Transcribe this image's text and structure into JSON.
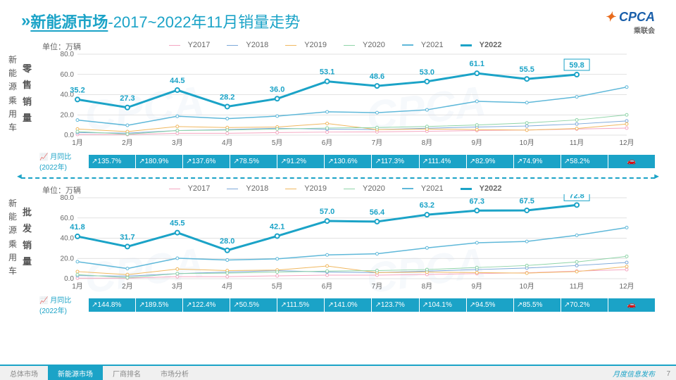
{
  "header": {
    "title_main": "新能源市场",
    "title_sub": "-2017~2022年11月销量走势",
    "logo_text": "CPCA",
    "logo_sub": "乘联会"
  },
  "legend": {
    "items": [
      {
        "label": "Y2017",
        "color": "#f5a6c1",
        "width": 1
      },
      {
        "label": "Y2018",
        "color": "#7da8d9",
        "width": 1
      },
      {
        "label": "Y2019",
        "color": "#f0b860",
        "width": 1
      },
      {
        "label": "Y2020",
        "color": "#8fd4a8",
        "width": 1
      },
      {
        "label": "Y2021",
        "color": "#5fb8d9",
        "width": 1.5
      },
      {
        "label": "Y2022",
        "color": "#1ba3c7",
        "width": 3
      }
    ]
  },
  "months": [
    "1月",
    "2月",
    "3月",
    "4月",
    "5月",
    "6月",
    "7月",
    "8月",
    "9月",
    "10月",
    "11月",
    "12月"
  ],
  "chart1": {
    "unit": "单位：万辆",
    "side_label": "新能源乘用车",
    "metric_label": "零售销量",
    "ylim": [
      0,
      80
    ],
    "ytick_step": 20,
    "series": {
      "Y2017": [
        0.7,
        0.5,
        1.8,
        1.8,
        2.5,
        3.0,
        3.2,
        3.8,
        4.5,
        5.0,
        6.0,
        7.0
      ],
      "Y2018": [
        2.5,
        2.0,
        4.5,
        5.5,
        6.8,
        5.8,
        5.5,
        6.8,
        8.0,
        9.0,
        11.0,
        14.0
      ],
      "Y2019": [
        6.0,
        3.5,
        8.5,
        7.5,
        8.0,
        11.5,
        5.5,
        6.0,
        5.5,
        5.0,
        6.5,
        11.0
      ],
      "Y2020": [
        3.5,
        1.0,
        4.5,
        5.0,
        6.0,
        7.0,
        7.5,
        8.5,
        10.0,
        12.0,
        15.0,
        20.0
      ],
      "Y2021": [
        14.9,
        9.7,
        18.7,
        16.3,
        18.8,
        23.0,
        22.2,
        25.0,
        33.4,
        32.1,
        37.8,
        47.5
      ],
      "Y2022": [
        35.2,
        27.3,
        44.5,
        28.2,
        36.0,
        53.1,
        48.6,
        53.0,
        61.1,
        55.5,
        59.8
      ]
    },
    "labels2022": [
      "35.2",
      "27.3",
      "44.5",
      "28.2",
      "36.0",
      "53.1",
      "48.6",
      "53.0",
      "61.1",
      "55.5",
      "59.8"
    ],
    "highlight_last": true,
    "yoy_label": "月同比(2022年)",
    "yoy": [
      "135.7%",
      "180.9%",
      "137.6%",
      "78.5%",
      "91.2%",
      "130.6%",
      "117.3%",
      "111.4%",
      "82.9%",
      "74.9%",
      "58.2%",
      ""
    ]
  },
  "chart2": {
    "unit": "单位：万辆",
    "side_label": "新能源乘用车",
    "metric_label": "批发销量",
    "ylim": [
      0,
      80
    ],
    "ytick_step": 20,
    "series": {
      "Y2017": [
        0.5,
        0.5,
        2.0,
        2.0,
        2.8,
        3.5,
        3.5,
        4.2,
        5.0,
        5.8,
        7.5,
        9.0
      ],
      "Y2018": [
        3.0,
        2.5,
        5.0,
        6.5,
        8.0,
        6.5,
        6.0,
        7.5,
        9.0,
        10.5,
        13.0,
        16.0
      ],
      "Y2019": [
        7.0,
        4.0,
        9.5,
        8.0,
        8.5,
        12.5,
        6.0,
        6.5,
        6.0,
        5.5,
        7.0,
        12.0
      ],
      "Y2020": [
        4.0,
        1.0,
        5.0,
        5.5,
        6.5,
        7.5,
        8.0,
        9.0,
        11.0,
        13.0,
        16.5,
        22.0
      ],
      "Y2021": [
        16.8,
        10.0,
        20.2,
        18.4,
        19.6,
        23.5,
        24.6,
        30.4,
        35.5,
        36.8,
        42.9,
        50.5
      ],
      "Y2022": [
        41.8,
        31.7,
        45.5,
        28.0,
        42.1,
        57.0,
        56.4,
        63.2,
        67.3,
        67.5,
        72.8
      ]
    },
    "labels2022": [
      "41.8",
      "31.7",
      "45.5",
      "28.0",
      "42.1",
      "57.0",
      "56.4",
      "63.2",
      "67.3",
      "67.5",
      "72.8"
    ],
    "highlight_last": true,
    "yoy_label": "月同比(2022年)",
    "yoy": [
      "144.8%",
      "189.5%",
      "122.4%",
      "50.5%",
      "111.5%",
      "141.0%",
      "123.7%",
      "104.1%",
      "94.5%",
      "85.5%",
      "70.2%",
      ""
    ]
  },
  "footer": {
    "tabs": [
      "总体市场",
      "新能源市场",
      "厂商排名",
      "市场分析"
    ],
    "active": 1,
    "right_text": "月度信息发布",
    "page": "7"
  },
  "colors": {
    "primary": "#1ba3c7",
    "grid": "#d0d0d0",
    "text": "#555"
  }
}
